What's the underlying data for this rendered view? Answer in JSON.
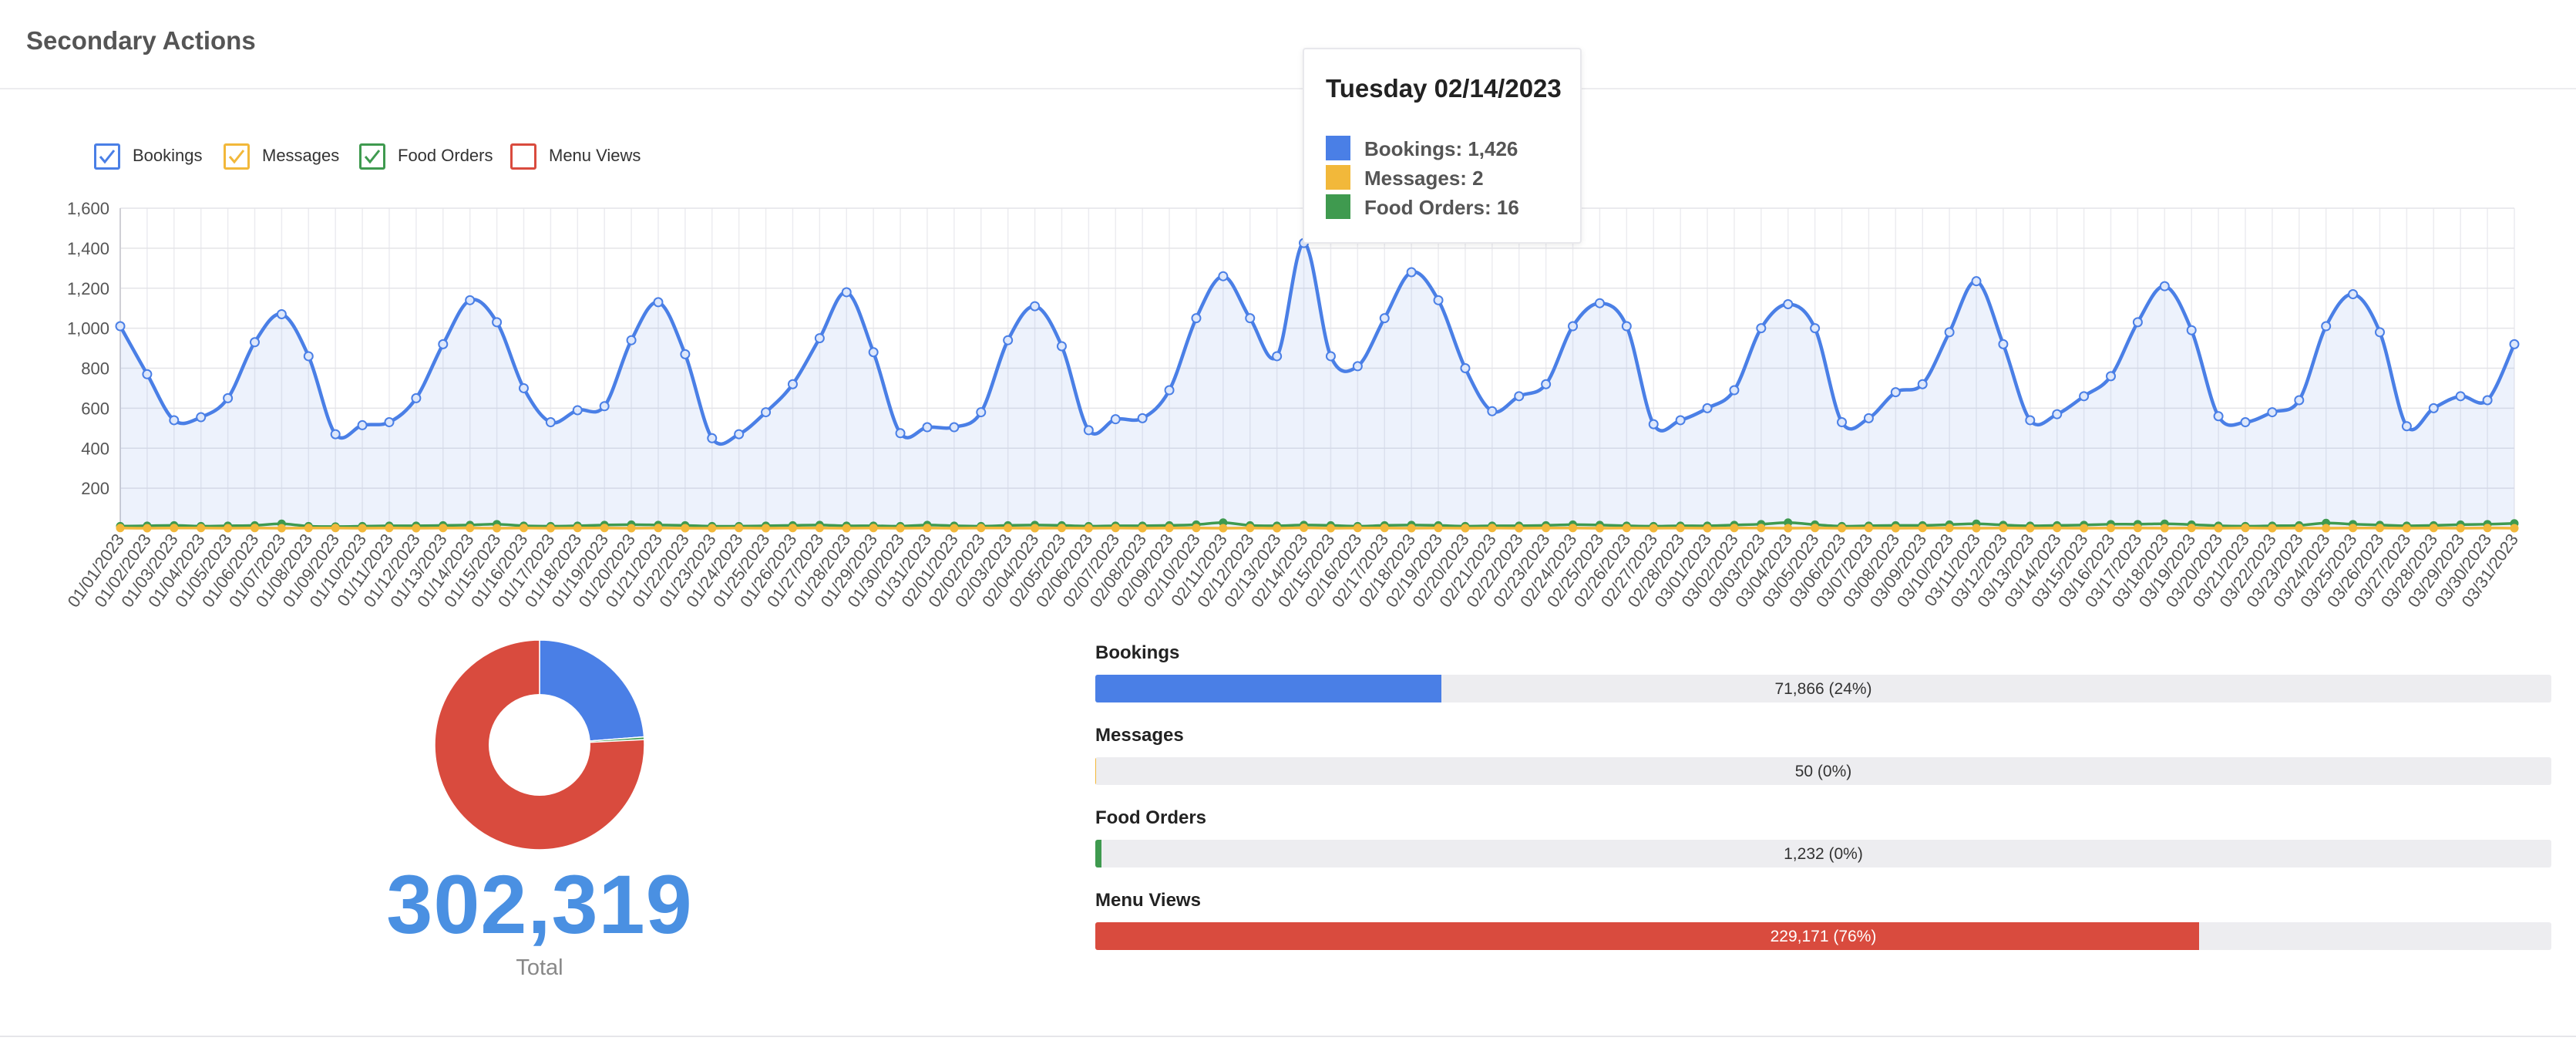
{
  "header": {
    "title": "Secondary Actions"
  },
  "legend": [
    {
      "label": "Bookings",
      "color": "#4a7fe6",
      "checked": true
    },
    {
      "label": "Messages",
      "color": "#f2b83a",
      "checked": true
    },
    {
      "label": "Food Orders",
      "color": "#3f9a4f",
      "checked": true
    },
    {
      "label": "Menu Views",
      "color": "#d94b3e",
      "checked": false
    }
  ],
  "tooltip": {
    "title": "Tuesday 02/14/2023",
    "rows": [
      {
        "label": "Bookings: 1,426",
        "color": "#4a7fe6"
      },
      {
        "label": "Messages: 2",
        "color": "#f2b83a"
      },
      {
        "label": "Food Orders: 16",
        "color": "#3f9a4f"
      }
    ]
  },
  "chart_data": [
    {
      "type": "line",
      "y_ticks": [
        "200",
        "400",
        "600",
        "800",
        "1,000",
        "1,200",
        "1,400",
        "1,600"
      ],
      "ylim": [
        0,
        1600
      ],
      "grid": true,
      "legend_position": "top-left",
      "x": [
        "01/01/2023",
        "01/02/2023",
        "01/03/2023",
        "01/04/2023",
        "01/05/2023",
        "01/06/2023",
        "01/07/2023",
        "01/08/2023",
        "01/09/2023",
        "01/10/2023",
        "01/11/2023",
        "01/12/2023",
        "01/13/2023",
        "01/14/2023",
        "01/15/2023",
        "01/16/2023",
        "01/17/2023",
        "01/18/2023",
        "01/19/2023",
        "01/20/2023",
        "01/21/2023",
        "01/22/2023",
        "01/23/2023",
        "01/24/2023",
        "01/25/2023",
        "01/26/2023",
        "01/27/2023",
        "01/28/2023",
        "01/29/2023",
        "01/30/2023",
        "01/31/2023",
        "02/01/2023",
        "02/02/2023",
        "02/03/2023",
        "02/04/2023",
        "02/05/2023",
        "02/06/2023",
        "02/07/2023",
        "02/08/2023",
        "02/09/2023",
        "02/10/2023",
        "02/11/2023",
        "02/12/2023",
        "02/13/2023",
        "02/14/2023",
        "02/15/2023",
        "02/16/2023",
        "02/17/2023",
        "02/18/2023",
        "02/19/2023",
        "02/20/2023",
        "02/21/2023",
        "02/22/2023",
        "02/23/2023",
        "02/24/2023",
        "02/25/2023",
        "02/26/2023",
        "02/27/2023",
        "02/28/2023",
        "03/01/2023",
        "03/02/2023",
        "03/03/2023",
        "03/04/2023",
        "03/05/2023",
        "03/06/2023",
        "03/07/2023",
        "03/08/2023",
        "03/09/2023",
        "03/10/2023",
        "03/11/2023",
        "03/12/2023",
        "03/13/2023",
        "03/14/2023",
        "03/15/2023",
        "03/16/2023",
        "03/17/2023",
        "03/18/2023",
        "03/19/2023",
        "03/20/2023",
        "03/21/2023",
        "03/22/2023",
        "03/23/2023",
        "03/24/2023",
        "03/25/2023",
        "03/26/2023",
        "03/27/2023",
        "03/28/2023",
        "03/29/2023",
        "03/30/2023",
        "03/31/2023"
      ],
      "series": [
        {
          "name": "Bookings",
          "color": "#4a7fe6",
          "values": [
            1010,
            770,
            540,
            555,
            650,
            930,
            1070,
            860,
            470,
            515,
            530,
            650,
            920,
            1140,
            1030,
            700,
            530,
            590,
            610,
            940,
            1130,
            870,
            450,
            470,
            580,
            720,
            950,
            1180,
            880,
            475,
            505,
            505,
            580,
            940,
            1110,
            910,
            490,
            545,
            550,
            690,
            1050,
            1260,
            1050,
            860,
            1426,
            860,
            810,
            1050,
            1280,
            1140,
            800,
            585,
            660,
            720,
            1010,
            1125,
            1010,
            520,
            540,
            600,
            690,
            1000,
            1120,
            1000,
            530,
            550,
            680,
            720,
            980,
            1235,
            920,
            540,
            570,
            660,
            760,
            1030,
            1210,
            990,
            560,
            530,
            580,
            640,
            1010,
            1170,
            980,
            510,
            600,
            660,
            640,
            920
          ]
        },
        {
          "name": "Messages",
          "color": "#f2b83a",
          "values": [
            1,
            0,
            1,
            1,
            0,
            1,
            0,
            1,
            1,
            0,
            1,
            0,
            1,
            1,
            0,
            1,
            0,
            1,
            1,
            0,
            1,
            0,
            0,
            1,
            0,
            1,
            1,
            0,
            1,
            0,
            1,
            0,
            1,
            1,
            0,
            1,
            0,
            1,
            0,
            1,
            1,
            0,
            1,
            0,
            2,
            0,
            1,
            1,
            0,
            1,
            0,
            1,
            0,
            1,
            1,
            0,
            1,
            0,
            1,
            0,
            1,
            1,
            0,
            1,
            0,
            1,
            0,
            1,
            1,
            0,
            1,
            0,
            1,
            0,
            1,
            1,
            0,
            1,
            0,
            1,
            0,
            1,
            0,
            1,
            1,
            0,
            1,
            0,
            1,
            0
          ]
        },
        {
          "name": "Food Orders",
          "color": "#3f9a4f",
          "values": [
            10,
            12,
            14,
            10,
            12,
            14,
            22,
            10,
            8,
            10,
            12,
            12,
            14,
            16,
            20,
            12,
            10,
            12,
            16,
            18,
            16,
            14,
            10,
            10,
            12,
            14,
            16,
            12,
            12,
            10,
            16,
            12,
            10,
            14,
            16,
            14,
            10,
            12,
            12,
            14,
            18,
            28,
            14,
            12,
            16,
            14,
            10,
            14,
            16,
            14,
            10,
            12,
            12,
            14,
            18,
            16,
            12,
            10,
            12,
            12,
            16,
            20,
            28,
            18,
            10,
            12,
            14,
            14,
            18,
            22,
            16,
            12,
            14,
            16,
            20,
            20,
            22,
            18,
            12,
            10,
            12,
            14,
            26,
            20,
            16,
            12,
            14,
            18,
            20,
            24
          ]
        }
      ]
    },
    {
      "type": "pie",
      "categories": [
        "Bookings",
        "Messages",
        "Food Orders",
        "Menu Views"
      ],
      "values": [
        71866,
        50,
        1232,
        229171
      ],
      "colors": [
        "#4a7fe6",
        "#f2b83a",
        "#3f9a4f",
        "#d94b3e"
      ],
      "total": "302,319",
      "total_label": "Total"
    },
    {
      "type": "bar",
      "categories": [
        "Bookings",
        "Messages",
        "Food Orders",
        "Menu Views"
      ],
      "values": [
        71866,
        50,
        1232,
        229171
      ],
      "value_labels": [
        "71,866 (24%)",
        "50 (0%)",
        "1,232 (0%)",
        "229,171 (76%)"
      ],
      "colors": [
        "#4a7fe6",
        "#f2b83a",
        "#3f9a4f",
        "#d94b3e"
      ],
      "xlim": [
        0,
        302319
      ]
    }
  ]
}
